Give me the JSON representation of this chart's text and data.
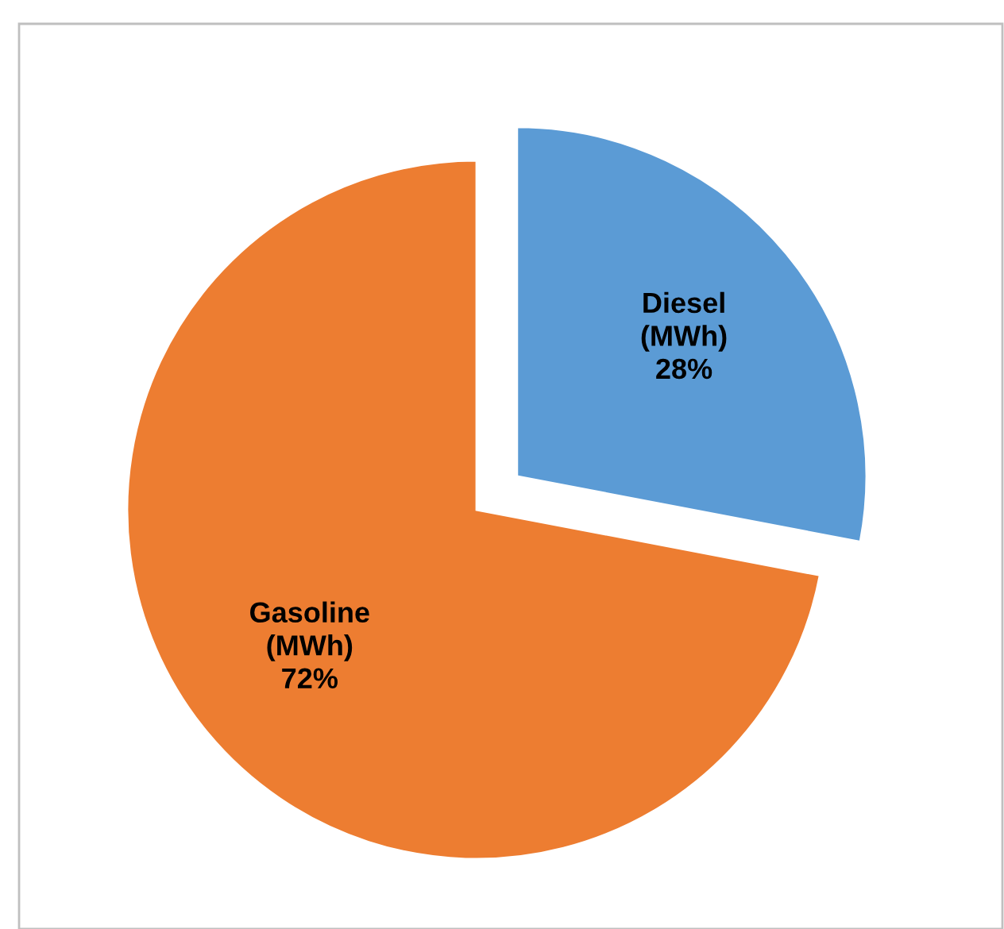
{
  "chart_data": {
    "type": "pie",
    "categories": [
      "Diesel (MWh)",
      "Gasoline (MWh)"
    ],
    "values": [
      28,
      72
    ],
    "colors": [
      "#5b9bd5",
      "#ed7d31"
    ],
    "value_labels": [
      "28%",
      "72%"
    ],
    "legend": false
  }
}
